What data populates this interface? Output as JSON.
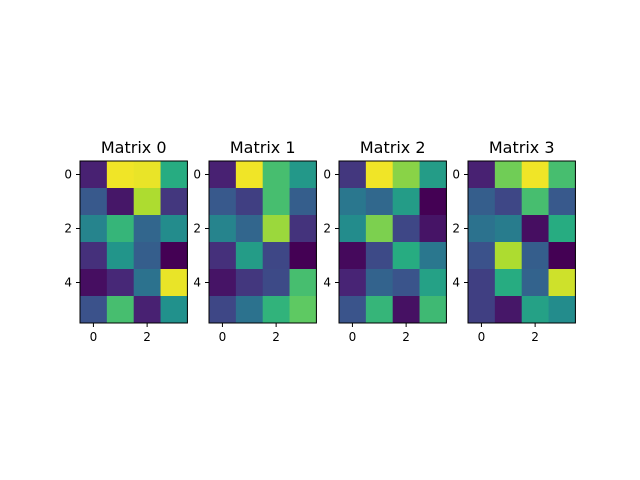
{
  "chart_data": [
    {
      "type": "heatmap",
      "title": "Matrix 0",
      "colormap": "viridis",
      "vmin": 0,
      "vmax": 1,
      "x_ticks": [
        0,
        2
      ],
      "y_ticks": [
        0,
        2,
        4
      ],
      "values": [
        [
          0.12,
          0.98,
          0.97,
          0.62
        ],
        [
          0.28,
          0.08,
          0.88,
          0.18
        ],
        [
          0.45,
          0.66,
          0.33,
          0.48
        ],
        [
          0.16,
          0.52,
          0.3,
          0.0
        ],
        [
          0.05,
          0.14,
          0.38,
          0.97
        ],
        [
          0.25,
          0.7,
          0.12,
          0.5
        ]
      ]
    },
    {
      "type": "heatmap",
      "title": "Matrix 1",
      "colormap": "viridis",
      "vmin": 0,
      "vmax": 1,
      "x_ticks": [
        0,
        2
      ],
      "y_ticks": [
        0,
        2,
        4
      ],
      "values": [
        [
          0.12,
          0.98,
          0.7,
          0.53
        ],
        [
          0.28,
          0.2,
          0.7,
          0.3
        ],
        [
          0.45,
          0.33,
          0.85,
          0.17
        ],
        [
          0.16,
          0.55,
          0.22,
          0.0
        ],
        [
          0.07,
          0.18,
          0.23,
          0.7
        ],
        [
          0.22,
          0.38,
          0.65,
          0.75
        ]
      ]
    },
    {
      "type": "heatmap",
      "title": "Matrix 2",
      "colormap": "viridis",
      "vmin": 0,
      "vmax": 1,
      "x_ticks": [
        0,
        2
      ],
      "y_ticks": [
        0,
        2,
        4
      ],
      "values": [
        [
          0.18,
          0.98,
          0.82,
          0.55
        ],
        [
          0.4,
          0.34,
          0.55,
          0.0
        ],
        [
          0.48,
          0.8,
          0.22,
          0.07
        ],
        [
          0.03,
          0.23,
          0.62,
          0.4
        ],
        [
          0.13,
          0.32,
          0.26,
          0.57
        ],
        [
          0.26,
          0.66,
          0.06,
          0.68
        ]
      ]
    },
    {
      "type": "heatmap",
      "title": "Matrix 3",
      "colormap": "viridis",
      "vmin": 0,
      "vmax": 1,
      "x_ticks": [
        0,
        2
      ],
      "y_ticks": [
        0,
        2,
        4
      ],
      "values": [
        [
          0.12,
          0.78,
          0.98,
          0.7
        ],
        [
          0.3,
          0.22,
          0.7,
          0.28
        ],
        [
          0.38,
          0.42,
          0.05,
          0.62
        ],
        [
          0.25,
          0.88,
          0.3,
          0.0
        ],
        [
          0.2,
          0.62,
          0.32,
          0.93
        ],
        [
          0.2,
          0.08,
          0.57,
          0.48
        ]
      ]
    }
  ]
}
